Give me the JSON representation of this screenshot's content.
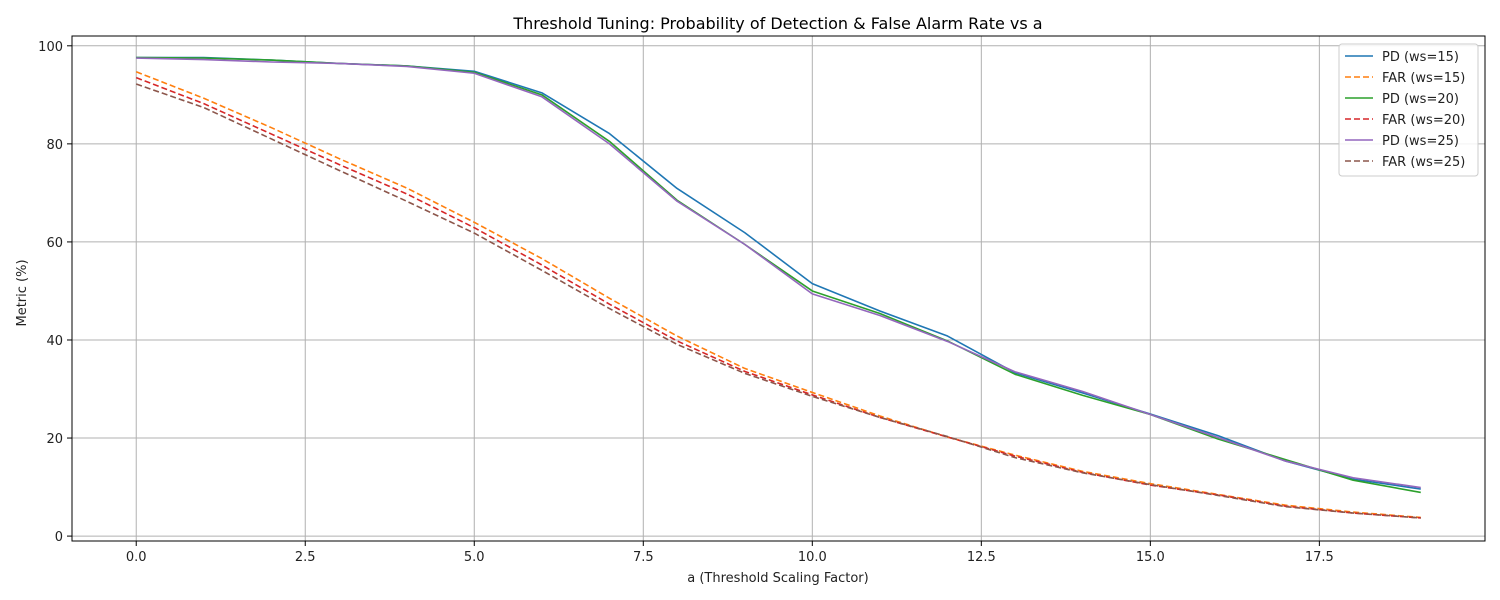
{
  "chart_data": {
    "type": "line",
    "title": "Threshold Tuning: Probability of Detection & False Alarm Rate vs a",
    "xlabel": "a (Threshold Scaling Factor)",
    "ylabel": "Metric (%)",
    "xlim": [
      -0.95,
      19.95
    ],
    "ylim": [
      -1.0,
      102.0
    ],
    "x_ticks": [
      0.0,
      2.5,
      5.0,
      7.5,
      10.0,
      12.5,
      15.0,
      17.5
    ],
    "x_tick_labels": [
      "0.0",
      "2.5",
      "5.0",
      "7.5",
      "10.0",
      "12.5",
      "15.0",
      "17.5"
    ],
    "y_ticks": [
      0,
      20,
      40,
      60,
      80,
      100
    ],
    "y_tick_labels": [
      "0",
      "20",
      "40",
      "60",
      "80",
      "100"
    ],
    "grid": true,
    "legend_position": "top-right",
    "x": [
      0,
      1,
      2,
      3,
      4,
      5,
      6,
      7,
      8,
      9,
      10,
      11,
      12,
      13,
      14,
      15,
      16,
      17,
      18,
      19
    ],
    "series": [
      {
        "name": "PD (ws=15)",
        "color": "#1f77b4",
        "dash": "solid",
        "values": [
          97.6,
          97.6,
          97.1,
          96.4,
          95.9,
          94.8,
          90.4,
          82.1,
          70.9,
          61.9,
          51.5,
          45.9,
          40.8,
          33.3,
          29.2,
          24.9,
          20.5,
          15.3,
          11.6,
          9.6
        ]
      },
      {
        "name": "FAR (ws=15)",
        "color": "#ff7f0e",
        "dash": "dashed",
        "values": [
          94.7,
          89.3,
          83.3,
          77.0,
          71.0,
          64.0,
          56.6,
          48.5,
          40.8,
          34.2,
          29.3,
          24.5,
          20.2,
          16.5,
          13.2,
          10.7,
          8.5,
          6.3,
          4.9,
          3.8
        ]
      },
      {
        "name": "PD (ws=20)",
        "color": "#2ca02c",
        "dash": "solid",
        "values": [
          97.6,
          97.5,
          97.1,
          96.4,
          95.9,
          94.6,
          90.0,
          80.5,
          68.5,
          59.5,
          50.0,
          45.4,
          39.8,
          33.0,
          28.7,
          24.8,
          19.8,
          15.6,
          11.4,
          8.9
        ]
      },
      {
        "name": "FAR (ws=20)",
        "color": "#d62728",
        "dash": "dashed",
        "values": [
          93.5,
          88.2,
          82.0,
          75.8,
          69.8,
          62.9,
          55.3,
          47.3,
          39.8,
          33.6,
          28.8,
          24.2,
          20.2,
          16.3,
          13.0,
          10.4,
          8.4,
          6.1,
          4.7,
          3.7
        ]
      },
      {
        "name": "PD (ws=25)",
        "color": "#9467bd",
        "dash": "solid",
        "values": [
          97.5,
          97.2,
          96.7,
          96.4,
          95.8,
          94.4,
          89.6,
          80.0,
          68.3,
          59.5,
          49.4,
          45.0,
          39.7,
          33.5,
          29.5,
          24.8,
          20.1,
          15.3,
          11.9,
          9.9
        ]
      },
      {
        "name": "FAR (ws=25)",
        "color": "#8c564b",
        "dash": "dashed",
        "values": [
          92.2,
          87.4,
          81.0,
          74.6,
          68.3,
          61.8,
          54.2,
          46.4,
          39.1,
          33.2,
          28.5,
          24.2,
          20.3,
          16.0,
          12.9,
          10.5,
          8.3,
          6.0,
          4.7,
          3.7
        ]
      }
    ]
  }
}
